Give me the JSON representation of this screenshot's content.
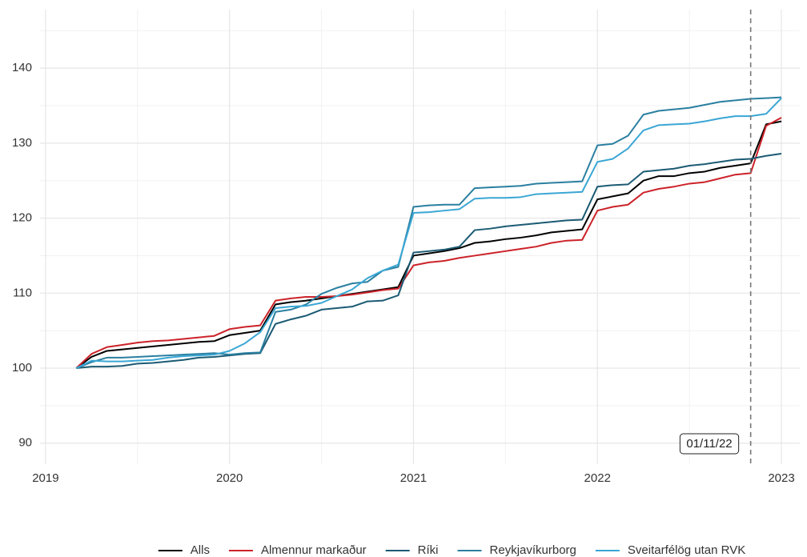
{
  "chart_data": {
    "type": "line",
    "x": [
      2019.167,
      2019.25,
      2019.333,
      2019.417,
      2019.5,
      2019.583,
      2019.667,
      2019.75,
      2019.833,
      2019.917,
      2020,
      2020.083,
      2020.167,
      2020.25,
      2020.333,
      2020.417,
      2020.5,
      2020.583,
      2020.667,
      2020.75,
      2020.833,
      2020.917,
      2021,
      2021.083,
      2021.167,
      2021.25,
      2021.333,
      2021.417,
      2021.5,
      2021.583,
      2021.667,
      2021.75,
      2021.833,
      2021.917,
      2022,
      2022.083,
      2022.167,
      2022.25,
      2022.333,
      2022.417,
      2022.5,
      2022.583,
      2022.667,
      2022.75,
      2022.833,
      2022.917,
      2023
    ],
    "series": [
      {
        "name": "Alls",
        "color": "#000000",
        "values": [
          100,
          101.5,
          102.3,
          102.5,
          102.7,
          102.9,
          103.1,
          103.3,
          103.5,
          103.6,
          104.4,
          104.7,
          105.0,
          108.5,
          108.8,
          109.0,
          109.3,
          109.6,
          109.9,
          110.2,
          110.5,
          110.8,
          115.0,
          115.3,
          115.6,
          116.0,
          116.7,
          116.9,
          117.2,
          117.4,
          117.7,
          118.1,
          118.3,
          118.5,
          122.5,
          122.9,
          123.3,
          125.0,
          125.6,
          125.6,
          126.0,
          126.2,
          126.7,
          127.0,
          127.3,
          132.5,
          132.9
        ]
      },
      {
        "name": "Almennur markaður",
        "color": "#cc2229",
        "values": [
          100,
          101.9,
          102.8,
          103.1,
          103.4,
          103.6,
          103.7,
          103.9,
          104.1,
          104.3,
          105.2,
          105.5,
          105.7,
          109.0,
          109.3,
          109.5,
          109.5,
          109.6,
          109.8,
          110.1,
          110.4,
          110.6,
          113.7,
          114.1,
          114.3,
          114.7,
          115.0,
          115.3,
          115.6,
          115.9,
          116.2,
          116.7,
          117.0,
          117.1,
          121.0,
          121.5,
          121.8,
          123.4,
          123.9,
          124.2,
          124.6,
          124.8,
          125.3,
          125.8,
          126.0,
          132.3,
          133.4
        ]
      },
      {
        "name": "Ríki",
        "color": "#1b5a73",
        "values": [
          100,
          100.2,
          100.2,
          100.3,
          100.6,
          100.7,
          100.9,
          101.1,
          101.4,
          101.5,
          101.7,
          101.9,
          102.0,
          105.9,
          106.5,
          107.0,
          107.8,
          108.0,
          108.2,
          108.9,
          109.0,
          109.7,
          115.4,
          115.6,
          115.8,
          116.2,
          118.4,
          118.6,
          118.9,
          119.1,
          119.3,
          119.5,
          119.7,
          119.8,
          124.2,
          124.4,
          124.5,
          126.2,
          126.4,
          126.6,
          127.0,
          127.2,
          127.5,
          127.8,
          127.9,
          128.3,
          128.6
        ]
      },
      {
        "name": "Reykjavíkurborg",
        "color": "#2a7fa0",
        "values": [
          100,
          100.8,
          101.4,
          101.4,
          101.5,
          101.6,
          101.7,
          101.8,
          101.9,
          102.0,
          101.8,
          102.0,
          102.1,
          107.5,
          107.8,
          108.5,
          109.9,
          110.7,
          111.3,
          111.5,
          113.0,
          113.5,
          121.5,
          121.7,
          121.8,
          121.8,
          124.0,
          124.1,
          124.2,
          124.3,
          124.6,
          124.7,
          124.8,
          124.9,
          129.7,
          129.9,
          131.0,
          133.8,
          134.3,
          134.5,
          134.7,
          135.1,
          135.5,
          135.7,
          135.9,
          136.0,
          136.1
        ]
      },
      {
        "name": "Sveitarfélög utan RVK",
        "color": "#3aa6d4",
        "values": [
          100,
          101.0,
          100.9,
          100.9,
          101.0,
          101.1,
          101.4,
          101.6,
          101.7,
          101.8,
          102.3,
          103.3,
          104.8,
          108.0,
          108.2,
          108.3,
          108.7,
          109.6,
          110.5,
          112.0,
          113.0,
          113.8,
          120.7,
          120.8,
          121.0,
          121.2,
          122.6,
          122.7,
          122.7,
          122.8,
          123.2,
          123.3,
          123.4,
          123.5,
          127.5,
          127.9,
          129.3,
          131.7,
          132.4,
          132.5,
          132.6,
          132.9,
          133.3,
          133.6,
          133.6,
          133.9,
          136.0
        ]
      }
    ],
    "xlim": [
      2018.97,
      2023.1
    ],
    "xticks": [
      2019,
      2020,
      2021,
      2022,
      2023
    ],
    "xminorticks": [
      2019.5,
      2020.5,
      2021.5,
      2022.5
    ],
    "ylim": [
      87.2,
      147.8
    ],
    "yticks": [
      90,
      100,
      110,
      120,
      130,
      140
    ],
    "yminorticks": [
      95,
      105,
      115,
      125,
      135,
      145
    ],
    "grid": true,
    "legend": "bottom",
    "annotation": {
      "x": 2022.833,
      "label": "01/11/22"
    }
  }
}
